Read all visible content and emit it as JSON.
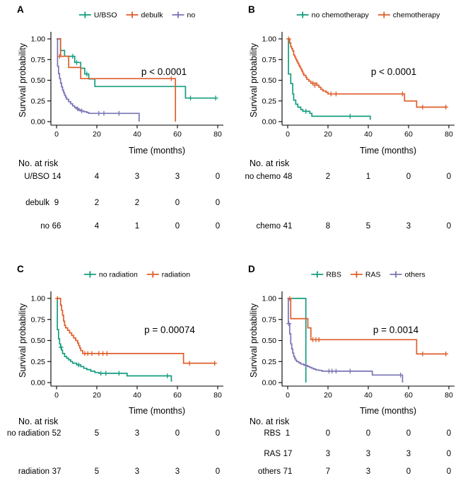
{
  "figure": {
    "ylabel": "Survival probability",
    "xlabel": "Time (months)",
    "risk_header": "No. at risk",
    "colors": {
      "green": "#159D7F",
      "orange": "#DE5E2B",
      "purple": "#7874B5"
    }
  },
  "chart_data": [
    {
      "panel": "A",
      "type": "line",
      "subtype": "kaplan-meier",
      "p_value": "p < 0.0001",
      "xlabel": "Time (months)",
      "ylabel": "Survival probability",
      "xlim": [
        0,
        80
      ],
      "ylim": [
        0,
        1
      ],
      "xticks": [
        0,
        20,
        40,
        60,
        80
      ],
      "yticks": [
        "1.00",
        "0.75",
        "0.50",
        "0.25",
        "0.00"
      ],
      "risk_header": "No. at risk",
      "risk_times": [
        0,
        20,
        40,
        60,
        80
      ],
      "series": [
        {
          "legend": "U/BSO",
          "risk_label": "U/BSO",
          "color": "#159D7F",
          "row": 0,
          "steps": [
            [
              0,
              1
            ],
            [
              2,
              0.86
            ],
            [
              4,
              0.79
            ],
            [
              9,
              0.715
            ],
            [
              12,
              0.645
            ],
            [
              14,
              0.575
            ],
            [
              16,
              0.515
            ],
            [
              19,
              0.425
            ],
            [
              64,
              0.285
            ],
            [
              79,
              0.285
            ]
          ],
          "censors": [
            [
              8,
              0.79
            ],
            [
              10,
              0.715
            ],
            [
              15,
              0.575
            ],
            [
              66.5,
              0.285
            ],
            [
              79,
              0.285
            ]
          ],
          "at_risk": [
            14,
            4,
            3,
            3,
            0
          ]
        },
        {
          "legend": "debulk",
          "risk_label": "debulk",
          "color": "#DE5E2B",
          "row": 1,
          "steps": [
            [
              0,
              1
            ],
            [
              2,
              0.79
            ],
            [
              6,
              0.655
            ],
            [
              12,
              0.52
            ],
            [
              59,
              0
            ]
          ],
          "censors": [
            [
              1.5,
              0.79
            ],
            [
              57,
              0.52
            ]
          ],
          "at_risk": [
            9,
            2,
            2,
            0,
            0
          ]
        },
        {
          "legend": "no",
          "risk_label": "no",
          "color": "#7874B5",
          "row": 2,
          "steps": [
            [
              0,
              1
            ],
            [
              0.5,
              0.67
            ],
            [
              1,
              0.58
            ],
            [
              1.5,
              0.52
            ],
            [
              2,
              0.465
            ],
            [
              2.5,
              0.42
            ],
            [
              3,
              0.38
            ],
            [
              3.5,
              0.35
            ],
            [
              4,
              0.32
            ],
            [
              4.5,
              0.295
            ],
            [
              5,
              0.27
            ],
            [
              6,
              0.24
            ],
            [
              7,
              0.215
            ],
            [
              8,
              0.19
            ],
            [
              9,
              0.17
            ],
            [
              10,
              0.155
            ],
            [
              11,
              0.14
            ],
            [
              12,
              0.13
            ],
            [
              13.5,
              0.12
            ],
            [
              15,
              0.11
            ],
            [
              16,
              0.1
            ],
            [
              41,
              0
            ]
          ],
          "censors": [
            [
              10.5,
              0.155
            ],
            [
              12.5,
              0.13
            ],
            [
              21,
              0.1
            ],
            [
              23.5,
              0.1
            ],
            [
              31,
              0.1
            ]
          ],
          "at_risk": [
            66,
            4,
            1,
            0,
            0
          ]
        }
      ]
    },
    {
      "panel": "B",
      "type": "line",
      "subtype": "kaplan-meier",
      "p_value": "p < 0.0001",
      "xlabel": "Time (months)",
      "ylabel": "Survival probability",
      "xlim": [
        0,
        80
      ],
      "ylim": [
        0,
        1
      ],
      "xticks": [
        0,
        20,
        40,
        60,
        80
      ],
      "yticks": [
        "1.00",
        "0.75",
        "0.50",
        "0.25",
        "0.00"
      ],
      "risk_header": "No. at risk",
      "risk_times": [
        0,
        20,
        40,
        60,
        80
      ],
      "series": [
        {
          "legend": "no chemotherapy",
          "risk_label": "no chemo",
          "color": "#159D7F",
          "row": 0,
          "steps": [
            [
              0,
              1
            ],
            [
              0.4,
              0.575
            ],
            [
              1.5,
              0.46
            ],
            [
              2.5,
              0.335
            ],
            [
              3,
              0.26
            ],
            [
              4,
              0.21
            ],
            [
              5,
              0.175
            ],
            [
              6.5,
              0.145
            ],
            [
              7.5,
              0.125
            ],
            [
              11,
              0.1
            ],
            [
              12,
              0.065
            ],
            [
              41,
              0.03
            ],
            [
              41.3,
              0.03
            ]
          ],
          "censors": [
            [
              9,
              0.125
            ],
            [
              31,
              0.065
            ]
          ],
          "at_risk": [
            48,
            2,
            1,
            0,
            0
          ]
        },
        {
          "legend": "chemotherapy",
          "risk_label": "chemo",
          "color": "#DE5E2B",
          "row": 2,
          "steps": [
            [
              0,
              1
            ],
            [
              1,
              0.95
            ],
            [
              1.5,
              0.905
            ],
            [
              2,
              0.88
            ],
            [
              2.5,
              0.855
            ],
            [
              3,
              0.805
            ],
            [
              3.5,
              0.78
            ],
            [
              4,
              0.755
            ],
            [
              4.5,
              0.73
            ],
            [
              5,
              0.705
            ],
            [
              5.5,
              0.68
            ],
            [
              6,
              0.66
            ],
            [
              6.5,
              0.635
            ],
            [
              7,
              0.61
            ],
            [
              7.5,
              0.585
            ],
            [
              8,
              0.56
            ],
            [
              9,
              0.535
            ],
            [
              9.5,
              0.51
            ],
            [
              10.5,
              0.49
            ],
            [
              11.5,
              0.465
            ],
            [
              14.5,
              0.44
            ],
            [
              15.5,
              0.415
            ],
            [
              16.5,
              0.39
            ],
            [
              17.5,
              0.37
            ],
            [
              19,
              0.355
            ],
            [
              20,
              0.335
            ],
            [
              58,
              0.25
            ],
            [
              64,
              0.175
            ],
            [
              79,
              0.175
            ]
          ],
          "censors": [
            [
              0.5,
              1
            ],
            [
              12.5,
              0.465
            ],
            [
              13.5,
              0.44
            ],
            [
              21.5,
              0.335
            ],
            [
              24,
              0.335
            ],
            [
              57,
              0.335
            ],
            [
              67,
              0.175
            ],
            [
              78.5,
              0.175
            ]
          ],
          "at_risk": [
            41,
            8,
            5,
            3,
            0
          ]
        }
      ]
    },
    {
      "panel": "C",
      "type": "line",
      "subtype": "kaplan-meier",
      "p_value": "p = 0.00074",
      "xlabel": "Time (months)",
      "ylabel": "Survival probability",
      "xlim": [
        0,
        80
      ],
      "ylim": [
        0,
        1
      ],
      "xticks": [
        0,
        20,
        40,
        60,
        80
      ],
      "yticks": [
        "1.00",
        "0.75",
        "0.50",
        "0.25",
        "0.00"
      ],
      "risk_header": "No. at risk",
      "risk_times": [
        0,
        20,
        40,
        60,
        80
      ],
      "series": [
        {
          "legend": "no radiation",
          "risk_label": "no radiation",
          "color": "#159D7F",
          "row": 0,
          "steps": [
            [
              0,
              1
            ],
            [
              0.4,
              0.63
            ],
            [
              1,
              0.52
            ],
            [
              1.5,
              0.46
            ],
            [
              2,
              0.42
            ],
            [
              2.5,
              0.385
            ],
            [
              3,
              0.345
            ],
            [
              4,
              0.31
            ],
            [
              5,
              0.29
            ],
            [
              6,
              0.27
            ],
            [
              7,
              0.25
            ],
            [
              8,
              0.23
            ],
            [
              10,
              0.21
            ],
            [
              12,
              0.19
            ],
            [
              13.5,
              0.17
            ],
            [
              15,
              0.155
            ],
            [
              17,
              0.135
            ],
            [
              19,
              0.12
            ],
            [
              21,
              0.11
            ],
            [
              35,
              0.08
            ],
            [
              57,
              0.02
            ],
            [
              57.4,
              0.02
            ]
          ],
          "censors": [
            [
              2.2,
              0.42
            ],
            [
              11,
              0.21
            ],
            [
              22,
              0.11
            ],
            [
              24.5,
              0.11
            ],
            [
              31,
              0.11
            ],
            [
              55,
              0.08
            ]
          ],
          "at_risk": [
            52,
            5,
            3,
            0,
            0
          ]
        },
        {
          "legend": "radiation",
          "risk_label": "radiation",
          "color": "#DE5E2B",
          "row": 2,
          "steps": [
            [
              0,
              1
            ],
            [
              2,
              0.92
            ],
            [
              2.5,
              0.86
            ],
            [
              3,
              0.8
            ],
            [
              3.5,
              0.73
            ],
            [
              4,
              0.68
            ],
            [
              4.5,
              0.65
            ],
            [
              5.5,
              0.62
            ],
            [
              6.5,
              0.59
            ],
            [
              7.5,
              0.56
            ],
            [
              8.5,
              0.53
            ],
            [
              9.5,
              0.5
            ],
            [
              10.5,
              0.47
            ],
            [
              11,
              0.44
            ],
            [
              11.5,
              0.41
            ],
            [
              12,
              0.38
            ],
            [
              13,
              0.345
            ],
            [
              63,
              0.23
            ],
            [
              79,
              0.23
            ]
          ],
          "censors": [
            [
              0.5,
              1
            ],
            [
              14,
              0.345
            ],
            [
              15.5,
              0.345
            ],
            [
              17.5,
              0.345
            ],
            [
              21,
              0.345
            ],
            [
              23,
              0.345
            ],
            [
              25,
              0.345
            ],
            [
              66,
              0.23
            ],
            [
              78.5,
              0.23
            ]
          ],
          "at_risk": [
            37,
            5,
            3,
            3,
            0
          ]
        }
      ]
    },
    {
      "panel": "D",
      "type": "line",
      "subtype": "kaplan-meier",
      "p_value": "p = 0.0014",
      "xlabel": "Time (months)",
      "ylabel": "Survival probability",
      "xlim": [
        0,
        80
      ],
      "ylim": [
        0,
        1
      ],
      "xticks": [
        0,
        20,
        40,
        60,
        80
      ],
      "yticks": [
        "1.00",
        "0.75",
        "0.50",
        "0.25",
        "0.00"
      ],
      "risk_header": "No. at risk",
      "risk_times": [
        0,
        20,
        40,
        60,
        80
      ],
      "series": [
        {
          "legend": "RBS",
          "risk_label": "RBS",
          "color": "#159D7F",
          "row": 0,
          "steps": [
            [
              0,
              1
            ],
            [
              9,
              0
            ]
          ],
          "censors": [],
          "at_risk": [
            1,
            0,
            0,
            0,
            0
          ]
        },
        {
          "legend": "RAS",
          "risk_label": "RAS",
          "color": "#DE5E2B",
          "row": 1,
          "steps": [
            [
              0,
              1
            ],
            [
              1.5,
              0.76
            ],
            [
              10,
              0.65
            ],
            [
              11.5,
              0.51
            ],
            [
              64,
              0.34
            ],
            [
              79,
              0.34
            ]
          ],
          "censors": [
            [
              1,
              1
            ],
            [
              12.5,
              0.51
            ],
            [
              14,
              0.51
            ],
            [
              15.5,
              0.51
            ],
            [
              67,
              0.34
            ],
            [
              78.5,
              0.34
            ]
          ],
          "at_risk": [
            17,
            3,
            3,
            3,
            0
          ]
        },
        {
          "legend": "others",
          "risk_label": "others",
          "color": "#7874B5",
          "row": 2,
          "steps": [
            [
              0,
              1
            ],
            [
              0.3,
              0.7
            ],
            [
              1,
              0.58
            ],
            [
              1.5,
              0.46
            ],
            [
              2,
              0.4
            ],
            [
              2.5,
              0.35
            ],
            [
              3,
              0.31
            ],
            [
              3.5,
              0.285
            ],
            [
              4,
              0.265
            ],
            [
              4.5,
              0.25
            ],
            [
              5.5,
              0.235
            ],
            [
              6.5,
              0.22
            ],
            [
              8,
              0.21
            ],
            [
              9,
              0.2
            ],
            [
              10,
              0.19
            ],
            [
              11,
              0.18
            ],
            [
              12,
              0.17
            ],
            [
              13,
              0.16
            ],
            [
              14,
              0.15
            ],
            [
              15.5,
              0.145
            ],
            [
              17,
              0.135
            ],
            [
              42,
              0.09
            ],
            [
              57,
              0.01
            ],
            [
              57.4,
              0.01
            ]
          ],
          "censors": [
            [
              0.6,
              0.7
            ],
            [
              9,
              0.205
            ],
            [
              20.5,
              0.135
            ],
            [
              22,
              0.135
            ],
            [
              24,
              0.135
            ],
            [
              31,
              0.135
            ],
            [
              56,
              0.09
            ]
          ],
          "at_risk": [
            71,
            7,
            3,
            0,
            0
          ]
        }
      ]
    }
  ]
}
